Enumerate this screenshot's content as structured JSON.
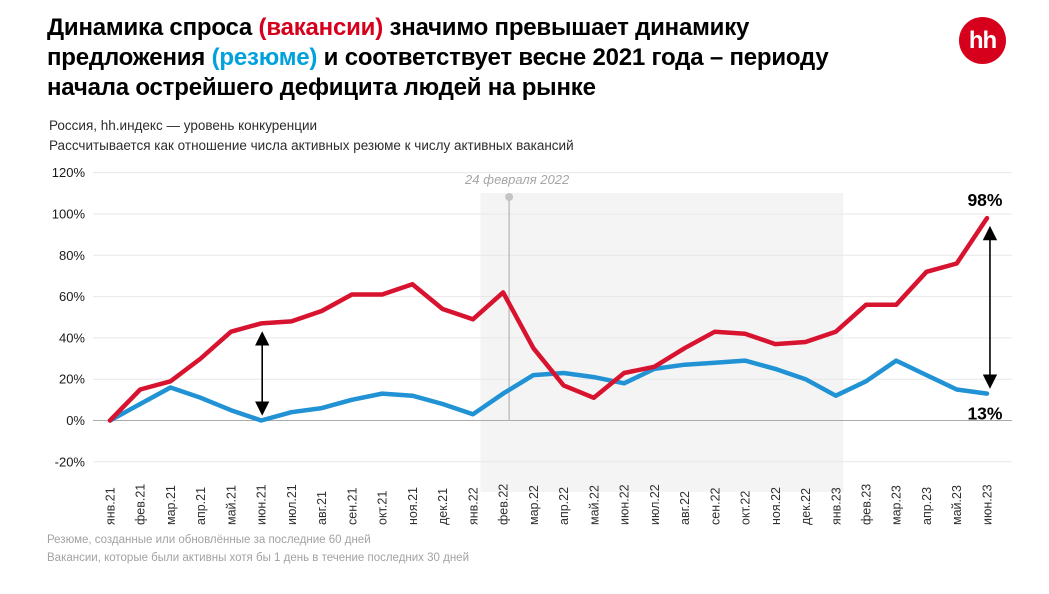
{
  "header": {
    "title_segments": [
      {
        "text": "Динамика спроса ",
        "color": "dark"
      },
      {
        "text": "(вакансии)",
        "color": "red"
      },
      {
        "text": " значимо превышает динамику\nпредложения ",
        "color": "dark"
      },
      {
        "text": "(резюме)",
        "color": "blue"
      },
      {
        "text": " и соответствует весне 2021 года – периоду\nначала острейшего дефицита людей на рынке",
        "color": "dark"
      }
    ],
    "logo_text": "hh"
  },
  "subtitle": {
    "line1": "Россия, hh.индекс — уровень конкуренции",
    "line2": "Рассчитывается как отношение числа активных резюме к числу активных вакансий"
  },
  "chart_data": {
    "type": "line",
    "categories": [
      "янв.21",
      "фев.21",
      "мар.21",
      "апр.21",
      "май.21",
      "июн.21",
      "июл.21",
      "авг.21",
      "сен.21",
      "окт.21",
      "ноя.21",
      "дек.21",
      "янв.22",
      "фев.22",
      "мар.22",
      "апр.22",
      "май.22",
      "июн.22",
      "июл.22",
      "авг.22",
      "сен.22",
      "окт.22",
      "ноя.22",
      "дек.22",
      "янв.23",
      "фев.23",
      "мар.23",
      "апр.23",
      "май.23",
      "июн.23"
    ],
    "series": [
      {
        "name": "вакансии",
        "color": "#d8132f",
        "values": [
          0,
          15,
          19,
          30,
          43,
          47,
          48,
          53,
          61,
          61,
          66,
          54,
          49,
          62,
          35,
          17,
          11,
          23,
          26,
          35,
          43,
          42,
          37,
          38,
          43,
          56,
          56,
          72,
          76,
          98
        ]
      },
      {
        "name": "резюме",
        "color": "#2193d5",
        "values": [
          0,
          8,
          16,
          11,
          5,
          0,
          4,
          6,
          10,
          13,
          12,
          8,
          3,
          13,
          22,
          23,
          21,
          18,
          25,
          27,
          28,
          29,
          25,
          20,
          12,
          19,
          29,
          22,
          15,
          13
        ]
      }
    ],
    "ylim": [
      -20,
      120
    ],
    "yticks": [
      120,
      100,
      80,
      60,
      40,
      20,
      0,
      -20
    ],
    "ytick_suffix": "%",
    "grid": true,
    "legend": "none",
    "x_labels_rotated": true,
    "annotation": {
      "text": "24 февраля 2022",
      "x_index": 13
    },
    "shaded_region": {
      "from_index": 12.25,
      "to_index": 24.25
    },
    "end_labels": [
      {
        "text": "98%",
        "series": "вакансии",
        "value": 98
      },
      {
        "text": "13%",
        "series": "резюме",
        "value": 13
      }
    ],
    "arrows": [
      {
        "x_index": 5,
        "from_value": 47,
        "to_value": 0
      },
      {
        "x_index": 29,
        "from_value": 98,
        "to_value": 13
      }
    ]
  },
  "footnotes": [
    "Резюме, созданные или обновлённые за последние 60 дней",
    "Вакансии, которые были активны хотя бы 1 день в течение последних 30 дней"
  ],
  "colors": {
    "brand_red": "#d6001c",
    "accent_blue": "#00a1dd",
    "line_red": "#d8132f",
    "line_blue": "#2193d5",
    "shade": "#f4f4f4",
    "grid": "#e7e7e7",
    "zero_line": "#ababab",
    "annotation_gray": "#a6a6a6"
  }
}
